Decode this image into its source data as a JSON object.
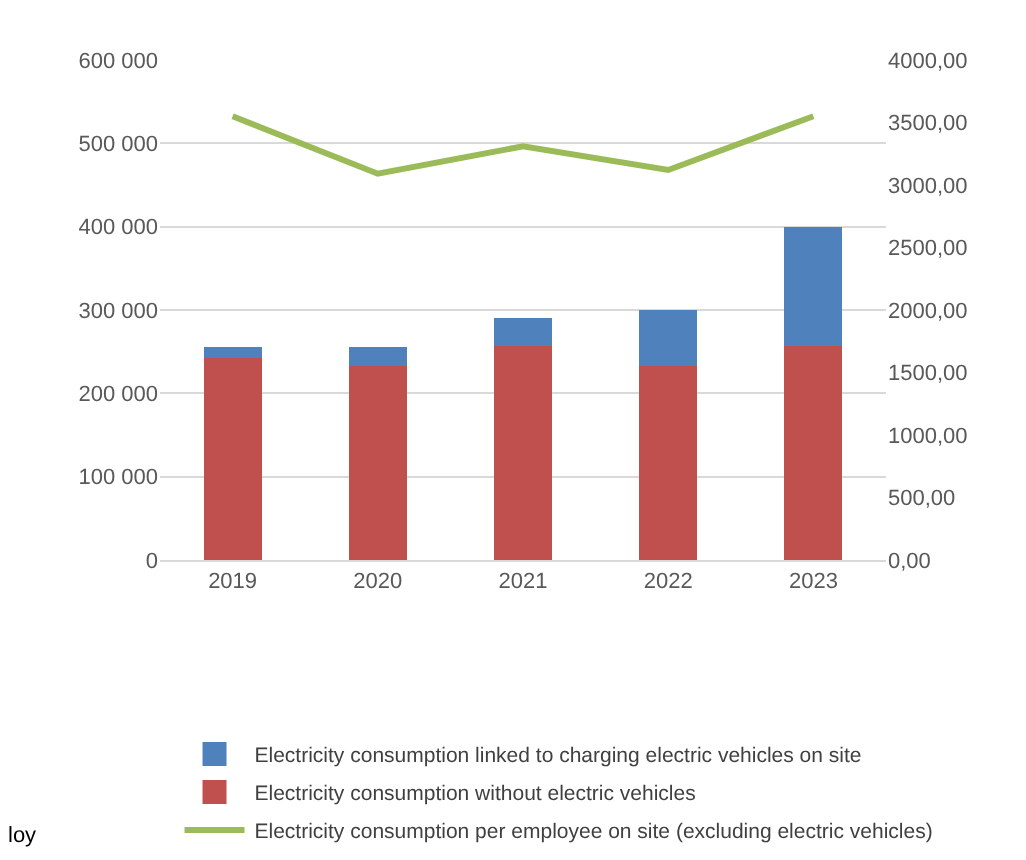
{
  "chart_data": {
    "type": "bar",
    "stacked": true,
    "categories": [
      "2019",
      "2020",
      "2021",
      "2022",
      "2023"
    ],
    "series": [
      {
        "name": "Electricity consumption without electric vehicles",
        "color": "#c0504d",
        "values": [
          242000,
          233000,
          257000,
          233000,
          257000
        ]
      },
      {
        "name": "Electricity consumption linked to charging electric vehicles on site",
        "color": "#4f81bd",
        "values": [
          14000,
          23000,
          33000,
          67000,
          143000
        ]
      },
      {
        "name": "Electricity consumption per employee on site (excluding electric vehicles)",
        "color": "#9bbb59",
        "type": "line",
        "axis": "y2",
        "values": [
          3550,
          3090,
          3310,
          3120,
          3550
        ]
      }
    ],
    "ylim": [
      0,
      600000
    ],
    "yticks": [
      0,
      {
        "value": 100000,
        "label": "100 000"
      },
      {
        "value": 200000,
        "label": "200 000"
      },
      {
        "value": 300000,
        "label": "300 000"
      },
      {
        "value": 400000,
        "label": "400 000"
      },
      {
        "value": 500000,
        "label": "500 000"
      },
      {
        "value": 600000,
        "label": "600 000"
      }
    ],
    "y2lim": [
      0,
      4000
    ],
    "y2ticks": [
      {
        "value": 0,
        "label": "0,00"
      },
      {
        "value": 500,
        "label": "500,00"
      },
      {
        "value": 1000,
        "label": "1000,00"
      },
      {
        "value": 1500,
        "label": "1500,00"
      },
      {
        "value": 2000,
        "label": "2000,00"
      },
      {
        "value": 2500,
        "label": "2500,00"
      },
      {
        "value": 3000,
        "label": "3000,00"
      },
      {
        "value": 3500,
        "label": "3500,00"
      },
      {
        "value": 4000,
        "label": "4000,00"
      }
    ],
    "grid": "y",
    "legend": "bottom",
    "marker": "none",
    "annotations": [
      "loy"
    ]
  }
}
